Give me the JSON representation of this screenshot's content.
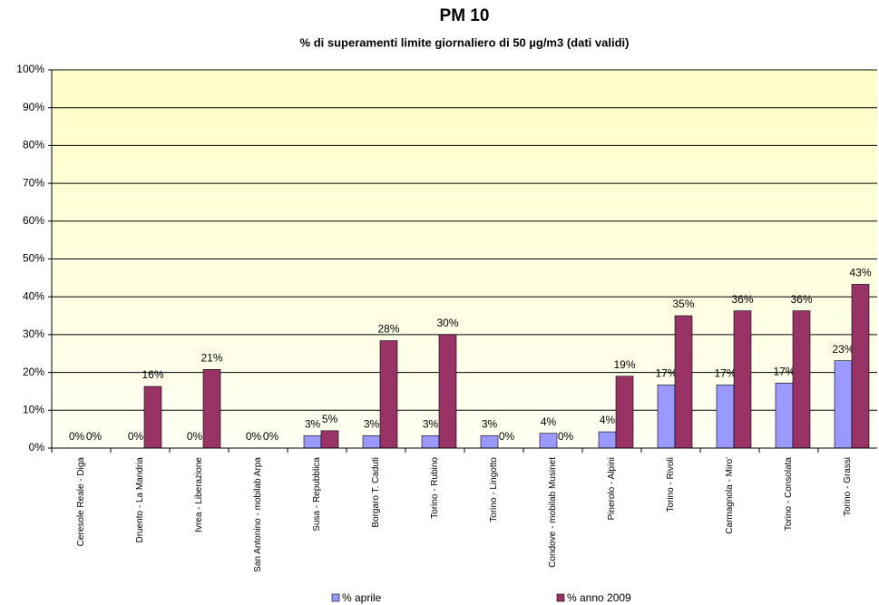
{
  "chart_data": {
    "type": "bar",
    "title": "PM 10",
    "subtitle": "% di superamenti limite giornaliero di 50 µg/m3 (dati validi)",
    "categories": [
      "Ceresole Reale - Diga",
      "Druento - La Mandria",
      "Ivrea - Liberazione",
      "San Antonino - mobilab Arpa",
      "Susa - Repubblica",
      "Borgaro T. Caduti",
      "Torino - Rubino",
      "Torino - Lingotto",
      "Condove - mobilab Musinet",
      "Pinerolo - Alpini",
      "Torino - Rivoli",
      "Carmagnola - Miro'",
      "Torino - Consolata",
      "Torino - Grassi"
    ],
    "series": [
      {
        "name": "% aprile",
        "color": "#9999ff",
        "values": [
          0,
          0,
          0,
          0,
          3.3,
          3.3,
          3.3,
          3.3,
          3.9,
          4.3,
          16.7,
          16.7,
          17.2,
          23.1
        ],
        "value_labels": [
          "0%",
          "0%",
          "0%",
          "0%",
          "3%",
          "3%",
          "3%",
          "3%",
          "4%",
          "4%",
          "17%",
          "17%",
          "17%",
          "23%"
        ]
      },
      {
        "name": "% anno 2009",
        "color": "#993366",
        "values": [
          0,
          16.3,
          20.8,
          0,
          4.6,
          28.4,
          30,
          0,
          0,
          19,
          35,
          36.3,
          36.3,
          43.3
        ],
        "value_labels": [
          "0%",
          "16%",
          "21%",
          "0%",
          "5%",
          "28%",
          "30%",
          "0%",
          "0%",
          "19%",
          "35%",
          "36%",
          "36%",
          "43%"
        ]
      }
    ],
    "ylim": [
      0,
      100
    ],
    "yticks": [
      {
        "value": 0,
        "label": "0%"
      },
      {
        "value": 10,
        "label": "10%"
      },
      {
        "value": 20,
        "label": "20%"
      },
      {
        "value": 30,
        "label": "30%"
      },
      {
        "value": 40,
        "label": "40%"
      },
      {
        "value": 50,
        "label": "50%"
      },
      {
        "value": 60,
        "label": "60%"
      },
      {
        "value": 70,
        "label": "70%"
      },
      {
        "value": 80,
        "label": "80%"
      },
      {
        "value": 90,
        "label": "90%"
      },
      {
        "value": 100,
        "label": "100%"
      }
    ],
    "grid": true
  }
}
